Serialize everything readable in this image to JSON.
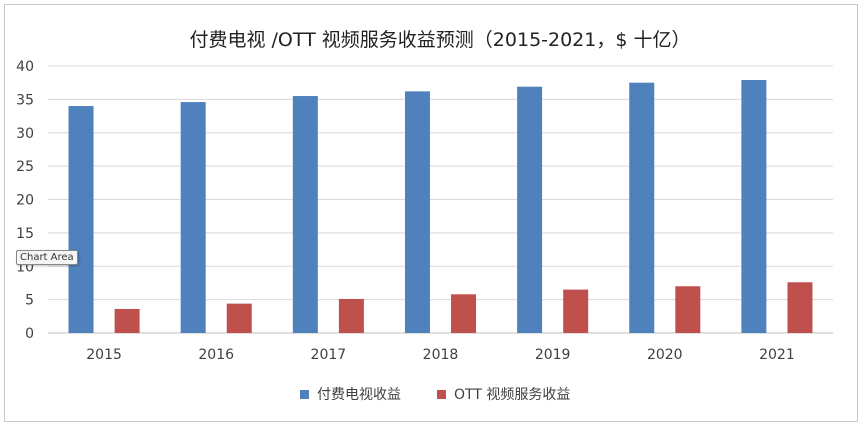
{
  "chart_data": {
    "type": "bar",
    "title": "付费电视 /OTT 视频服务收益预测（2015-2021，$ 十亿）",
    "categories": [
      "2015",
      "2016",
      "2017",
      "2018",
      "2019",
      "2020",
      "2021"
    ],
    "series": [
      {
        "name": "付费电视收益",
        "values": [
          34.0,
          34.6,
          35.5,
          36.2,
          36.9,
          37.5,
          37.9
        ],
        "color": "#4f81bd"
      },
      {
        "name": "OTT 视频服务收益",
        "values": [
          3.6,
          4.4,
          5.1,
          5.8,
          6.5,
          7.0,
          7.6
        ],
        "color": "#c0504d"
      }
    ],
    "ylim": [
      0,
      40
    ],
    "yticks": [
      0,
      5,
      10,
      15,
      20,
      25,
      30,
      35,
      40
    ],
    "grid": true,
    "legend": "bottom",
    "xlabel": "",
    "ylabel": ""
  },
  "tooltip": {
    "label": "Chart Area"
  }
}
